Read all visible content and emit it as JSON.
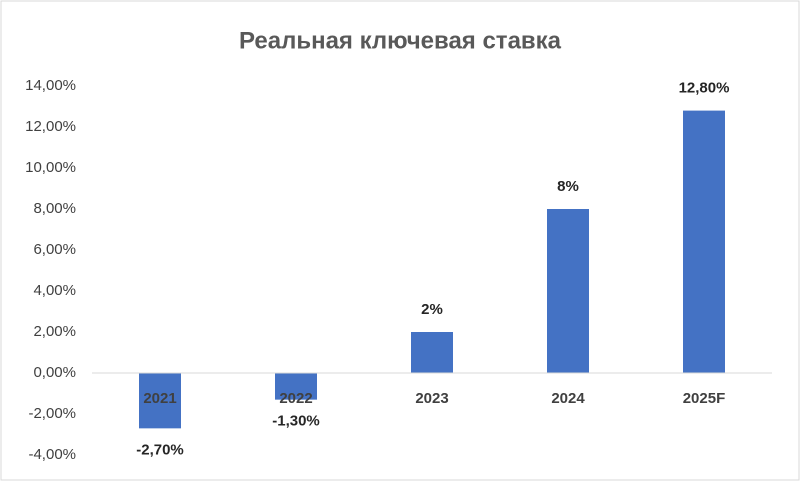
{
  "chart_data": {
    "type": "bar",
    "title": "Реальная ключевая ставка",
    "categories": [
      "2021",
      "2022",
      "2023",
      "2024",
      "2025F"
    ],
    "values": [
      -2.7,
      -1.3,
      2,
      8,
      12.8
    ],
    "value_labels": [
      "-2,70%",
      "-1,30%",
      "2%",
      "8%",
      "12,80%"
    ],
    "color": "#4472c4",
    "ylim": [
      -4,
      14
    ],
    "yticks": [
      {
        "value": -4,
        "label": "-4,00%"
      },
      {
        "value": -2,
        "label": "-2,00%"
      },
      {
        "value": 0,
        "label": "0,00%"
      },
      {
        "value": 2,
        "label": "2,00%"
      },
      {
        "value": 4,
        "label": "4,00%"
      },
      {
        "value": 6,
        "label": "6,00%"
      },
      {
        "value": 8,
        "label": "8,00%"
      },
      {
        "value": 10,
        "label": "10,00%"
      },
      {
        "value": 12,
        "label": "12,00%"
      },
      {
        "value": 14,
        "label": "14,00%"
      }
    ],
    "grid": false
  }
}
